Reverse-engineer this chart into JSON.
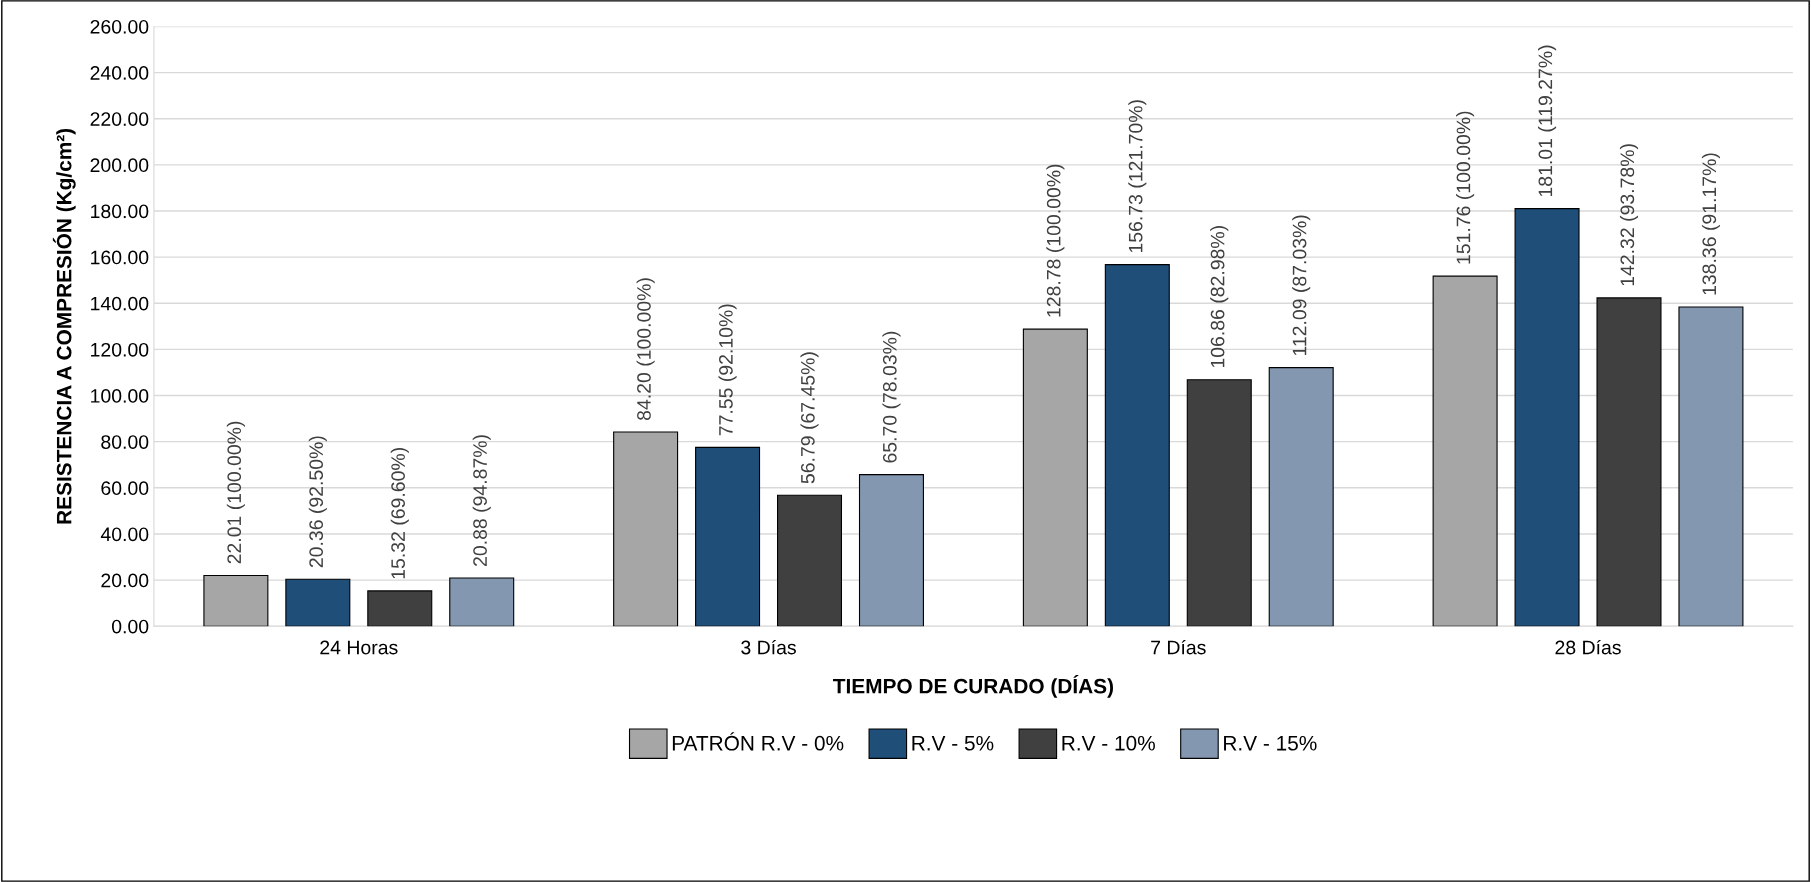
{
  "chart_data": {
    "type": "bar",
    "xlabel": "TIEMPO DE CURADO (DÍAS)",
    "ylabel": "RESISTENCIA A COMPRESIÓN (Kg/cm²)",
    "categories": [
      "24 Horas",
      "3 Días",
      "7 Días",
      "28 Días"
    ],
    "series": [
      {
        "name": "PATRÓN R.V - 0%",
        "color": "#a6a6a6",
        "values": [
          22.01,
          84.2,
          128.78,
          151.76
        ],
        "value_labels": [
          "22.01 (100.00%)",
          "84.20 (100.00%)",
          "128.78 (100.00%)",
          "151.76 (100.00%)"
        ]
      },
      {
        "name": "R.V - 5%",
        "color": "#1f4e79",
        "values": [
          20.36,
          77.55,
          156.73,
          181.01
        ],
        "value_labels": [
          "20.36 (92.50%)",
          "77.55 (92.10%)",
          "156.73 (121.70%)",
          "181.01 (119.27%)"
        ]
      },
      {
        "name": "R.V - 10%",
        "color": "#404040",
        "values": [
          15.32,
          56.79,
          106.86,
          142.32
        ],
        "value_labels": [
          "15.32 (69.60%)",
          "56.79 (67.45%)",
          "106.86 (82.98%)",
          "142.32 (93.78%)"
        ]
      },
      {
        "name": "R.V - 15%",
        "color": "#8497b0",
        "values": [
          20.88,
          65.7,
          112.09,
          138.36
        ],
        "value_labels": [
          "20.88 (94.87%)",
          "65.70 (78.03%)",
          "112.09 (87.03%)",
          "138.36 (91.17%)"
        ]
      }
    ],
    "ylim": [
      0,
      260
    ],
    "yticks": [
      {
        "value": 0,
        "label": "0.00"
      },
      {
        "value": 20,
        "label": "20.00"
      },
      {
        "value": 40,
        "label": "40.00"
      },
      {
        "value": 60,
        "label": "60.00"
      },
      {
        "value": 80,
        "label": "80.00"
      },
      {
        "value": 100,
        "label": "100.00"
      },
      {
        "value": 120,
        "label": "120.00"
      },
      {
        "value": 140,
        "label": "140.00"
      },
      {
        "value": 160,
        "label": "160.00"
      },
      {
        "value": 180,
        "label": "180.00"
      },
      {
        "value": 200,
        "label": "200.00"
      },
      {
        "value": 220,
        "label": "220.00"
      },
      {
        "value": 240,
        "label": "240.00"
      },
      {
        "value": 260,
        "label": "260.00"
      }
    ],
    "grid": "y",
    "legend": "bottom"
  }
}
